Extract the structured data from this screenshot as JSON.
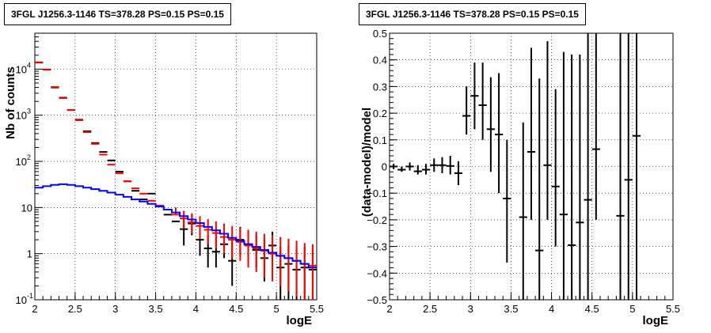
{
  "chart_data": [
    {
      "type": "scatter",
      "title": "3FGL J1256.3-1146 TS=378.28 PS=0.15 PS=0.15",
      "xlabel": "logE",
      "ylabel": "Nb of counts",
      "xlim": [
        2,
        5.5
      ],
      "ylim": [
        0.1,
        60000
      ],
      "ylog": true,
      "grid": true,
      "colors": {
        "data": "#000000",
        "model_points": "#ff0000",
        "background_model": "#0000ff"
      },
      "x_ticks": [
        {
          "v": 2,
          "label": "2"
        },
        {
          "v": 2.5,
          "label": "2.5"
        },
        {
          "v": 3,
          "label": "3"
        },
        {
          "v": 3.5,
          "label": "3.5"
        },
        {
          "v": 4,
          "label": "4"
        },
        {
          "v": 4.5,
          "label": "4.5"
        },
        {
          "v": 5,
          "label": "5"
        },
        {
          "v": 5.5,
          "label": "5.5"
        }
      ],
      "y_ticks": [
        {
          "v": 0.1,
          "base": "10",
          "exp": "-1"
        },
        {
          "v": 1,
          "base": "1",
          "exp": ""
        },
        {
          "v": 10,
          "base": "10",
          "exp": ""
        },
        {
          "v": 100,
          "base": "10",
          "exp": "2"
        },
        {
          "v": 1000,
          "base": "10",
          "exp": "3"
        },
        {
          "v": 10000,
          "base": "10",
          "exp": "4"
        }
      ],
      "series": [
        {
          "role": "data",
          "x": [
            2.05,
            2.15,
            2.25,
            2.35,
            2.45,
            2.55,
            2.65,
            2.75,
            2.85,
            2.95,
            3.05,
            3.15,
            3.25,
            3.35,
            3.45,
            3.55,
            3.65,
            3.75,
            3.85,
            3.95,
            4.05,
            4.15,
            4.25,
            4.35,
            4.45,
            4.55,
            4.65,
            4.75,
            4.85,
            4.95,
            5.05,
            5.15,
            5.25,
            5.35,
            5.45
          ],
          "y": [
            14000,
            9800,
            4000,
            2400,
            1300,
            800,
            450,
            250,
            160,
            105,
            60,
            37,
            23,
            15,
            20,
            11,
            7,
            5,
            3.4,
            4.5,
            2,
            1.3,
            1.1,
            1.6,
            0.7,
            2,
            1.6,
            1.2,
            0.8,
            1.5,
            0.5,
            0.6,
            0.45,
            0.5,
            0.45
          ],
          "ylow": [
            14000,
            9800,
            4000,
            2400,
            1300,
            800,
            450,
            250,
            160,
            105,
            60,
            37,
            23,
            15,
            20,
            11,
            7,
            5,
            1.5,
            2.5,
            0.9,
            0.5,
            0.5,
            0.8,
            0.2,
            0.9,
            0.7,
            0.5,
            0.25,
            0.7,
            0.1,
            0.1,
            0.1,
            0.1,
            0.1
          ],
          "yhigh": [
            14000,
            9800,
            4000,
            2400,
            1300,
            800,
            450,
            250,
            160,
            105,
            60,
            37,
            23,
            15,
            20,
            11,
            7,
            5,
            6,
            7,
            3.5,
            2.5,
            2.5,
            3,
            1.8,
            3.8,
            3,
            2.5,
            2,
            3,
            1.4,
            1.5,
            1.3,
            1.4,
            1.3
          ]
        },
        {
          "role": "model_points",
          "x": [
            2.05,
            2.15,
            2.25,
            2.35,
            2.45,
            2.55,
            2.65,
            2.75,
            2.85,
            2.95,
            3.05,
            3.15,
            3.25,
            3.35,
            3.45,
            3.55,
            3.65,
            3.75,
            3.85,
            3.95,
            4.05,
            4.15,
            4.25,
            4.35,
            4.45,
            4.55,
            4.65,
            4.75,
            4.85,
            4.95,
            5.05,
            5.15,
            5.25,
            5.35,
            5.45
          ],
          "y": [
            13800,
            9700,
            4100,
            2350,
            1300,
            780,
            430,
            240,
            140,
            85,
            55,
            37,
            26,
            20,
            14,
            11,
            9,
            7,
            5.8,
            4.8,
            4,
            3.3,
            2.8,
            2.3,
            2,
            1.8,
            1.5,
            1.3,
            1.15,
            1,
            0.9,
            0.8,
            0.7,
            0.6,
            0.55
          ],
          "ylow": [
            13800,
            9700,
            4100,
            2350,
            1300,
            780,
            430,
            240,
            140,
            85,
            55,
            37,
            26,
            20,
            14,
            11,
            9,
            7,
            3.5,
            2.8,
            2.1,
            1.6,
            1.3,
            1,
            0.8,
            0.7,
            0.5,
            0.4,
            0.3,
            0.25,
            0.2,
            0.15,
            0.12,
            0.1,
            0.1
          ],
          "yhigh": [
            13800,
            9700,
            4100,
            2350,
            1300,
            780,
            430,
            240,
            140,
            85,
            55,
            37,
            26,
            20,
            14,
            11,
            9,
            10,
            8.5,
            7.5,
            6.5,
            5.6,
            5,
            4.5,
            4,
            3.6,
            3.3,
            3,
            2.7,
            2.5,
            2.3,
            2.1,
            1.9,
            1.7,
            1.6
          ]
        },
        {
          "role": "background_model",
          "x": [
            2.0,
            2.1,
            2.2,
            2.3,
            2.4,
            2.5,
            2.6,
            2.7,
            2.8,
            2.9,
            3.0,
            3.1,
            3.2,
            3.3,
            3.4,
            3.5,
            3.6,
            3.7,
            3.8,
            3.9,
            4.0,
            4.1,
            4.2,
            4.3,
            4.4,
            4.5,
            4.6,
            4.7,
            4.8,
            4.9,
            5.0,
            5.1,
            5.2,
            5.3,
            5.4,
            5.5
          ],
          "y": [
            27,
            29,
            31,
            32,
            31,
            29,
            27,
            25,
            23,
            21,
            19,
            17,
            15,
            13.5,
            12,
            10.5,
            9,
            7.8,
            6.5,
            5.5,
            4.6,
            3.8,
            3.2,
            2.7,
            2.2,
            1.9,
            1.6,
            1.4,
            1.2,
            1.05,
            0.9,
            0.8,
            0.7,
            0.6,
            0.5,
            0.48
          ]
        }
      ]
    },
    {
      "type": "scatter",
      "title": "3FGL J1256.3-1146 TS=378.28 PS=0.15 PS=0.15",
      "xlabel": "logE",
      "ylabel": "(data-model)/model",
      "xlim": [
        2,
        5.5
      ],
      "ylim": [
        -0.5,
        0.5
      ],
      "ylog": false,
      "grid": true,
      "colors": {
        "data": "#000000"
      },
      "x_ticks": [
        {
          "v": 2,
          "label": "2"
        },
        {
          "v": 2.5,
          "label": "2.5"
        },
        {
          "v": 3,
          "label": "3"
        },
        {
          "v": 3.5,
          "label": "3.5"
        },
        {
          "v": 4,
          "label": "4"
        },
        {
          "v": 4.5,
          "label": "4.5"
        },
        {
          "v": 5,
          "label": "5"
        },
        {
          "v": 5.5,
          "label": "5.5"
        }
      ],
      "y_ticks": [
        {
          "v": -0.5,
          "label": "−0.5"
        },
        {
          "v": -0.4,
          "label": "−0.4"
        },
        {
          "v": -0.3,
          "label": "−0.3"
        },
        {
          "v": -0.2,
          "label": "−0.2"
        },
        {
          "v": -0.1,
          "label": "−0.1"
        },
        {
          "v": 0,
          "label": "0"
        },
        {
          "v": 0.1,
          "label": "0.1"
        },
        {
          "v": 0.2,
          "label": "0.2"
        },
        {
          "v": 0.3,
          "label": "0.3"
        },
        {
          "v": 0.4,
          "label": "0.4"
        },
        {
          "v": 0.5,
          "label": "0.5"
        }
      ],
      "series": [
        {
          "role": "data",
          "x": [
            2.05,
            2.15,
            2.25,
            2.35,
            2.45,
            2.55,
            2.65,
            2.75,
            2.85,
            2.95,
            3.05,
            3.15,
            3.25,
            3.35,
            3.45,
            3.65,
            3.75,
            3.85,
            3.95,
            4.05,
            4.15,
            4.25,
            4.35,
            4.45,
            4.55,
            4.85,
            4.95,
            5.05
          ],
          "y": [
            0.0,
            -0.012,
            0.0,
            -0.018,
            -0.012,
            0.005,
            0.005,
            0.002,
            -0.025,
            0.19,
            0.265,
            0.23,
            0.14,
            0.12,
            -0.12,
            -0.19,
            0.055,
            -0.315,
            0.005,
            -0.075,
            -0.18,
            -0.295,
            -0.21,
            -0.125,
            0.065,
            -0.185,
            -0.05,
            0.115
          ],
          "ylow": [
            -0.01,
            -0.02,
            -0.015,
            -0.03,
            -0.03,
            -0.02,
            -0.025,
            -0.03,
            -0.07,
            0.12,
            0.14,
            0.1,
            -0.02,
            -0.1,
            -0.36,
            -0.5,
            -0.2,
            -0.5,
            -0.2,
            -0.3,
            -0.5,
            -0.5,
            -0.5,
            -0.5,
            -0.2,
            -0.5,
            -0.5,
            -0.5
          ],
          "yhigh": [
            0.01,
            0.0,
            0.015,
            0.005,
            0.01,
            0.03,
            0.035,
            0.04,
            0.02,
            0.3,
            0.39,
            0.39,
            0.335,
            0.35,
            0.1,
            0.165,
            0.445,
            0.33,
            0.47,
            0.29,
            0.43,
            0.42,
            0.42,
            0.5,
            0.5,
            0.5,
            0.5,
            0.5
          ]
        }
      ]
    }
  ]
}
